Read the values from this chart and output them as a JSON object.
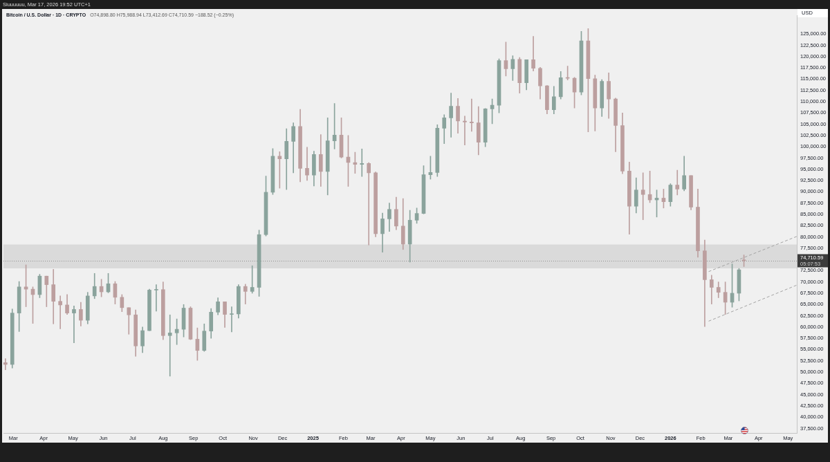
{
  "chart_data": {
    "type": "candlestick",
    "title": "Bitcoin / U.S. Dollar · 1D · CRYPTO",
    "subtitle": "O74,898.80 H75,988.94 L73,412.69 C74,710.59 −188.52 (−0.25%)",
    "ylabel": "USD",
    "annotations": [
      "Siuuuuuu, Mar 17, 2026 19:52 UTC+1",
      "05:07:53"
    ],
    "x": [
      "2024-02-22",
      "2024-02-29",
      "2024-03-07",
      "2024-03-14",
      "2024-03-21",
      "2024-03-28",
      "2024-04-04",
      "2024-04-11",
      "2024-04-18",
      "2024-04-25",
      "2024-05-02",
      "2024-05-09",
      "2024-05-16",
      "2024-05-23",
      "2024-05-30",
      "2024-06-06",
      "2024-06-13",
      "2024-06-20",
      "2024-06-27",
      "2024-07-04",
      "2024-07-11",
      "2024-07-18",
      "2024-07-25",
      "2024-08-01",
      "2024-08-08",
      "2024-08-15",
      "2024-08-22",
      "2024-08-29",
      "2024-09-05",
      "2024-09-12",
      "2024-09-19",
      "2024-09-26",
      "2024-10-03",
      "2024-10-10",
      "2024-10-17",
      "2024-10-24",
      "2024-10-31",
      "2024-11-07",
      "2024-11-14",
      "2024-11-21",
      "2024-11-28",
      "2024-12-05",
      "2024-12-12",
      "2024-12-19",
      "2024-12-26",
      "2025-01-02",
      "2025-01-09",
      "2025-01-16",
      "2025-01-23",
      "2025-01-30",
      "2025-02-06",
      "2025-02-13",
      "2025-02-20",
      "2025-02-27",
      "2025-03-06",
      "2025-03-13",
      "2025-03-20",
      "2025-03-27",
      "2025-04-03",
      "2025-04-10",
      "2025-04-17",
      "2025-04-24",
      "2025-05-01",
      "2025-05-08",
      "2025-05-15",
      "2025-05-22",
      "2025-05-29",
      "2025-06-05",
      "2025-06-12",
      "2025-06-19",
      "2025-06-26",
      "2025-07-03",
      "2025-07-10",
      "2025-07-17",
      "2025-07-24",
      "2025-07-31",
      "2025-08-07",
      "2025-08-14",
      "2025-08-21",
      "2025-08-28",
      "2025-09-04",
      "2025-09-11",
      "2025-09-18",
      "2025-09-25",
      "2025-10-02",
      "2025-10-09",
      "2025-10-16",
      "2025-10-23",
      "2025-10-30",
      "2025-11-06",
      "2025-11-13",
      "2025-11-20",
      "2025-11-27",
      "2025-12-04",
      "2025-12-11",
      "2025-12-18",
      "2025-12-25",
      "2026-01-01",
      "2026-01-08",
      "2026-01-15",
      "2026-01-22",
      "2026-01-29",
      "2026-02-05",
      "2026-02-12",
      "2026-02-19",
      "2026-02-26",
      "2026-03-05",
      "2026-03-12",
      "2026-03-17"
    ],
    "ohlc": [
      [
        52100,
        53000,
        50500,
        51700
      ],
      [
        51700,
        64000,
        50900,
        63100
      ],
      [
        63100,
        70100,
        59000,
        68900
      ],
      [
        68900,
        73800,
        64500,
        68400
      ],
      [
        68400,
        68900,
        60800,
        67200
      ],
      [
        67200,
        71700,
        66500,
        71300
      ],
      [
        71300,
        71300,
        64500,
        69400
      ],
      [
        69400,
        72800,
        60700,
        65700
      ],
      [
        65700,
        66900,
        59600,
        64900
      ],
      [
        64900,
        67200,
        62800,
        63100
      ],
      [
        63100,
        64700,
        56500,
        63900
      ],
      [
        63900,
        65500,
        60200,
        61500
      ],
      [
        61500,
        67700,
        60700,
        66900
      ],
      [
        66900,
        71900,
        66300,
        69000
      ],
      [
        69000,
        70600,
        66700,
        67800
      ],
      [
        67800,
        71900,
        67600,
        69600
      ],
      [
        69600,
        70100,
        65100,
        66600
      ],
      [
        66600,
        67200,
        63400,
        64300
      ],
      [
        64300,
        64300,
        58400,
        62700
      ],
      [
        62700,
        63800,
        53500,
        55800
      ],
      [
        55800,
        60000,
        54300,
        59200
      ],
      [
        59200,
        68400,
        59200,
        68200
      ],
      [
        68200,
        69400,
        63500,
        68300
      ],
      [
        68300,
        70000,
        57200,
        58100
      ],
      [
        58100,
        62700,
        49100,
        58700
      ],
      [
        58700,
        61800,
        56100,
        59500
      ],
      [
        59500,
        65000,
        57800,
        64200
      ],
      [
        64200,
        64500,
        57200,
        57300
      ],
      [
        57300,
        59800,
        52600,
        54800
      ],
      [
        54800,
        60700,
        54600,
        59100
      ],
      [
        59100,
        64100,
        57500,
        63300
      ],
      [
        63300,
        66500,
        62700,
        65600
      ],
      [
        65600,
        65600,
        59900,
        62800
      ],
      [
        62800,
        64500,
        58900,
        62900
      ],
      [
        62900,
        69400,
        62000,
        69000
      ],
      [
        69000,
        69500,
        65100,
        67900
      ],
      [
        67900,
        73600,
        67500,
        68800
      ],
      [
        68800,
        81500,
        66800,
        80500
      ],
      [
        80500,
        93500,
        80200,
        89900
      ],
      [
        89900,
        99600,
        89400,
        97900
      ],
      [
        97900,
        98900,
        90800,
        97300
      ],
      [
        97300,
        104000,
        90500,
        101200
      ],
      [
        101200,
        105300,
        94200,
        104500
      ],
      [
        104500,
        108300,
        92200,
        95200
      ],
      [
        95200,
        99900,
        92500,
        93700
      ],
      [
        93700,
        99000,
        91300,
        98300
      ],
      [
        98300,
        102700,
        91200,
        94500
      ],
      [
        94500,
        106400,
        89300,
        101300
      ],
      [
        101300,
        109600,
        99500,
        102600
      ],
      [
        102600,
        106400,
        97500,
        97700
      ],
      [
        97700,
        102500,
        91200,
        96500
      ],
      [
        96500,
        98800,
        94100,
        96100
      ],
      [
        96100,
        99500,
        93400,
        96300
      ],
      [
        96300,
        96500,
        78200,
        94200
      ],
      [
        94200,
        94400,
        80000,
        80700
      ],
      [
        80700,
        85300,
        76600,
        84000
      ],
      [
        84000,
        87500,
        81200,
        86100
      ],
      [
        86100,
        88800,
        81600,
        82400
      ],
      [
        82400,
        88500,
        77200,
        78400
      ],
      [
        78400,
        85900,
        74400,
        83700
      ],
      [
        83700,
        86400,
        83000,
        85200
      ],
      [
        85200,
        95800,
        85100,
        93800
      ],
      [
        93800,
        97900,
        92800,
        94300
      ],
      [
        94300,
        104900,
        93400,
        104100
      ],
      [
        104100,
        107100,
        100700,
        106400
      ],
      [
        106400,
        111900,
        102100,
        109000
      ],
      [
        109000,
        110700,
        103000,
        105700
      ],
      [
        105700,
        106800,
        100400,
        105500
      ],
      [
        105500,
        110600,
        103400,
        105300
      ],
      [
        105300,
        108900,
        98200,
        101000
      ],
      [
        101000,
        108500,
        100000,
        108400
      ],
      [
        108400,
        110600,
        105100,
        109200
      ],
      [
        109200,
        119500,
        107500,
        119100
      ],
      [
        119100,
        123200,
        115700,
        117300
      ],
      [
        117300,
        120200,
        114700,
        119400
      ],
      [
        119400,
        119800,
        111900,
        114200
      ],
      [
        114200,
        119300,
        112600,
        119300
      ],
      [
        119300,
        124500,
        116800,
        117400
      ],
      [
        117400,
        117600,
        110600,
        113500
      ],
      [
        113500,
        113600,
        107300,
        108200
      ],
      [
        108200,
        113400,
        107300,
        111100
      ],
      [
        111100,
        116700,
        110600,
        115300
      ],
      [
        115300,
        117900,
        114800,
        115200
      ],
      [
        115200,
        115400,
        108600,
        112100
      ],
      [
        112100,
        125600,
        111500,
        123500
      ],
      [
        123500,
        126200,
        103300,
        115100
      ],
      [
        115100,
        115900,
        103500,
        108600
      ],
      [
        108600,
        114900,
        106700,
        114500
      ],
      [
        114500,
        116400,
        106300,
        110600
      ],
      [
        110600,
        110800,
        98900,
        104700
      ],
      [
        104700,
        107500,
        94000,
        94600
      ],
      [
        94600,
        96600,
        80600,
        86800
      ],
      [
        86800,
        93100,
        85300,
        90400
      ],
      [
        90400,
        94200,
        83800,
        89400
      ],
      [
        89400,
        94600,
        87600,
        88200
      ],
      [
        88200,
        90400,
        84400,
        88600
      ],
      [
        88600,
        90600,
        86400,
        87800
      ],
      [
        87800,
        91800,
        86800,
        91500
      ],
      [
        91500,
        94800,
        89300,
        90600
      ],
      [
        90600,
        97900,
        90200,
        93600
      ],
      [
        93600,
        93600,
        86000,
        86600
      ],
      [
        86600,
        90600,
        75500,
        76900
      ],
      [
        76900,
        79300,
        60100,
        70500
      ],
      [
        70500,
        71500,
        65100,
        68800
      ],
      [
        68800,
        70000,
        66500,
        67700
      ],
      [
        67700,
        70000,
        62800,
        65500
      ],
      [
        65500,
        74000,
        64400,
        67500
      ],
      [
        67500,
        73000,
        65800,
        72700
      ],
      [
        74898.8,
        75988.94,
        73412.69,
        74710.59
      ]
    ],
    "colors": [
      "#bc9f9f",
      "#8aa39c",
      "#8aa39c",
      "#bc9f9f",
      "#bc9f9f",
      "#8aa39c",
      "#bc9f9f",
      "#bc9f9f",
      "#bc9f9f",
      "#bc9f9f",
      "#8aa39c",
      "#bc9f9f",
      "#8aa39c",
      "#8aa39c",
      "#bc9f9f",
      "#8aa39c",
      "#bc9f9f",
      "#bc9f9f",
      "#bc9f9f",
      "#bc9f9f",
      "#8aa39c",
      "#8aa39c",
      "#8aa39c",
      "#bc9f9f",
      "#8aa39c",
      "#8aa39c",
      "#8aa39c",
      "#bc9f9f",
      "#bc9f9f",
      "#8aa39c",
      "#8aa39c",
      "#8aa39c",
      "#bc9f9f",
      "#8aa39c",
      "#8aa39c",
      "#bc9f9f",
      "#8aa39c",
      "#8aa39c",
      "#8aa39c",
      "#8aa39c",
      "#bc9f9f",
      "#8aa39c",
      "#8aa39c",
      "#bc9f9f",
      "#bc9f9f",
      "#8aa39c",
      "#bc9f9f",
      "#8aa39c",
      "#8aa39c",
      "#bc9f9f",
      "#bc9f9f",
      "#bc9f9f",
      "#8aa39c",
      "#bc9f9f",
      "#bc9f9f",
      "#8aa39c",
      "#8aa39c",
      "#bc9f9f",
      "#bc9f9f",
      "#8aa39c",
      "#8aa39c",
      "#8aa39c",
      "#8aa39c",
      "#8aa39c",
      "#8aa39c",
      "#8aa39c",
      "#bc9f9f",
      "#bc9f9f",
      "#bc9f9f",
      "#bc9f9f",
      "#8aa39c",
      "#8aa39c",
      "#8aa39c",
      "#bc9f9f",
      "#8aa39c",
      "#bc9f9f",
      "#8aa39c",
      "#bc9f9f",
      "#bc9f9f",
      "#bc9f9f",
      "#8aa39c",
      "#8aa39c",
      "#bc9f9f",
      "#bc9f9f",
      "#8aa39c",
      "#bc9f9f",
      "#bc9f9f",
      "#8aa39c",
      "#bc9f9f",
      "#bc9f9f",
      "#bc9f9f",
      "#bc9f9f",
      "#8aa39c",
      "#bc9f9f",
      "#bc9f9f",
      "#8aa39c",
      "#bc9f9f",
      "#8aa39c",
      "#bc9f9f",
      "#8aa39c",
      "#bc9f9f",
      "#bc9f9f",
      "#bc9f9f",
      "#bc9f9f",
      "#bc9f9f",
      "#bc9f9f",
      "#8aa39c",
      "#8aa39c",
      "#bc9f9f"
    ],
    "series": [
      {
        "type": "line",
        "x": [
          "2026-02-09",
          "2026-05-10"
        ],
        "values": [
          72300,
          80100
        ],
        "color": "#a3a3a3"
      },
      {
        "type": "line",
        "x": [
          "2026-02-09",
          "2026-05-10"
        ],
        "values": [
          61300,
          69300
        ],
        "color": "#a3a3a3"
      }
    ],
    "line_style": "dashed",
    "ref_lines": [
      {
        "axis": "y",
        "value": 74710.59,
        "label": "74,710.59",
        "color": "#8f8f8f",
        "line_style": "dotted"
      }
    ],
    "bands": [
      {
        "axis": "y",
        "from": 73000,
        "to": 78300,
        "color": "#dadada"
      }
    ],
    "xlim": [
      "2024-02-20",
      "2026-05-10"
    ],
    "xticks": [
      {
        "value": "2024-03-01",
        "label": "Mar"
      },
      {
        "value": "2024-04-01",
        "label": "Apr"
      },
      {
        "value": "2024-05-01",
        "label": "May"
      },
      {
        "value": "2024-06-01",
        "label": "Jun"
      },
      {
        "value": "2024-07-01",
        "label": "Jul"
      },
      {
        "value": "2024-08-01",
        "label": "Aug"
      },
      {
        "value": "2024-09-01",
        "label": "Sep"
      },
      {
        "value": "2024-10-01",
        "label": "Oct"
      },
      {
        "value": "2024-11-01",
        "label": "Nov"
      },
      {
        "value": "2024-12-01",
        "label": "Dec"
      },
      {
        "value": "2025-01-01",
        "label": "2025"
      },
      {
        "value": "2025-02-01",
        "label": "Feb"
      },
      {
        "value": "2025-03-01",
        "label": "Mar"
      },
      {
        "value": "2025-04-01",
        "label": "Apr"
      },
      {
        "value": "2025-05-01",
        "label": "May"
      },
      {
        "value": "2025-06-01",
        "label": "Jun"
      },
      {
        "value": "2025-07-01",
        "label": "Jul"
      },
      {
        "value": "2025-08-01",
        "label": "Aug"
      },
      {
        "value": "2025-09-01",
        "label": "Sep"
      },
      {
        "value": "2025-10-01",
        "label": "Oct"
      },
      {
        "value": "2025-11-01",
        "label": "Nov"
      },
      {
        "value": "2025-12-01",
        "label": "Dec"
      },
      {
        "value": "2026-01-01",
        "label": "2026"
      },
      {
        "value": "2026-02-01",
        "label": "Feb"
      },
      {
        "value": "2026-03-01",
        "label": "Mar"
      },
      {
        "value": "2026-04-01",
        "label": "Apr"
      },
      {
        "value": "2026-05-01",
        "label": "May"
      }
    ],
    "ylim": [
      36500,
      129100
    ],
    "yticks": [
      {
        "value": 37500,
        "label": "37,500.00"
      },
      {
        "value": 40000,
        "label": "40,000.00"
      },
      {
        "value": 42500,
        "label": "42,500.00"
      },
      {
        "value": 45000,
        "label": "45,000.00"
      },
      {
        "value": 47500,
        "label": "47,500.00"
      },
      {
        "value": 50000,
        "label": "50,000.00"
      },
      {
        "value": 52500,
        "label": "52,500.00"
      },
      {
        "value": 55000,
        "label": "55,000.00"
      },
      {
        "value": 57500,
        "label": "57,500.00"
      },
      {
        "value": 60000,
        "label": "60,000.00"
      },
      {
        "value": 62500,
        "label": "62,500.00"
      },
      {
        "value": 65000,
        "label": "65,000.00"
      },
      {
        "value": 67500,
        "label": "67,500.00"
      },
      {
        "value": 70000,
        "label": "70,000.00"
      },
      {
        "value": 72500,
        "label": "72,500.00"
      },
      {
        "value": 77500,
        "label": "77,500.00"
      },
      {
        "value": 80000,
        "label": "80,000.00"
      },
      {
        "value": 82500,
        "label": "82,500.00"
      },
      {
        "value": 85000,
        "label": "85,000.00"
      },
      {
        "value": 87500,
        "label": "87,500.00"
      },
      {
        "value": 90000,
        "label": "90,000.00"
      },
      {
        "value": 92500,
        "label": "92,500.00"
      },
      {
        "value": 95000,
        "label": "95,000.00"
      },
      {
        "value": 97500,
        "label": "97,500.00"
      },
      {
        "value": 100000,
        "label": "100,000.00"
      },
      {
        "value": 102500,
        "label": "102,500.00"
      },
      {
        "value": 105000,
        "label": "105,000.00"
      },
      {
        "value": 107500,
        "label": "107,500.00"
      },
      {
        "value": 110000,
        "label": "110,000.00"
      },
      {
        "value": 112500,
        "label": "112,500.00"
      },
      {
        "value": 115000,
        "label": "115,000.00"
      },
      {
        "value": 117500,
        "label": "117,500.00"
      },
      {
        "value": 120000,
        "label": "120,000.00"
      },
      {
        "value": 122500,
        "label": "122,500.00"
      },
      {
        "value": 125000,
        "label": "125,000.00"
      }
    ]
  }
}
